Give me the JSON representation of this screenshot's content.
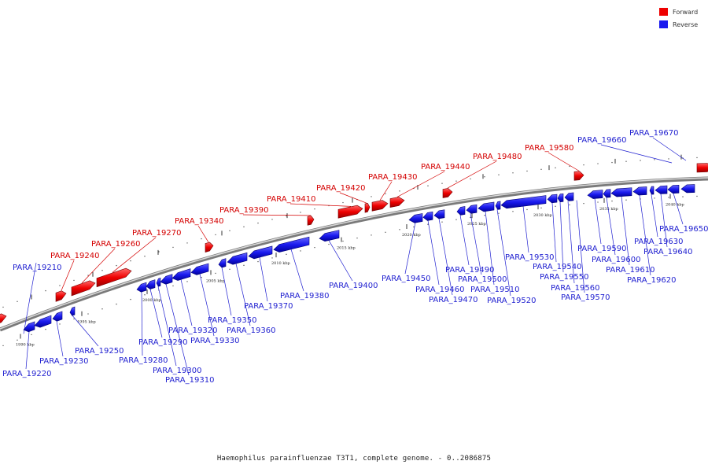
{
  "legend": [
    {
      "label": "Forward",
      "color": "#ee0000"
    },
    {
      "label": "Reverse",
      "color": "#1a1aee"
    }
  ],
  "caption": "Haemophilus parainfluenzae T3T1, complete genome. - 0..2086875",
  "scale": {
    "unit": "kbp",
    "ticks": [
      1990,
      1995,
      2000,
      2005,
      2010,
      2015,
      2020,
      2025,
      2030,
      2035,
      2040
    ]
  },
  "genes": {
    "forward": [
      {
        "id": "PARA_19240"
      },
      {
        "id": "PARA_19260"
      },
      {
        "id": "PARA_19270"
      },
      {
        "id": "PARA_19340"
      },
      {
        "id": "PARA_19390"
      },
      {
        "id": "PARA_19410"
      },
      {
        "id": "PARA_19420"
      },
      {
        "id": "PARA_19430"
      },
      {
        "id": "PARA_19440"
      },
      {
        "id": "PARA_19480"
      },
      {
        "id": "PARA_19580"
      }
    ],
    "reverse": [
      {
        "id": "PARA_19210"
      },
      {
        "id": "PARA_19220"
      },
      {
        "id": "PARA_19230"
      },
      {
        "id": "PARA_19250"
      },
      {
        "id": "PARA_19280"
      },
      {
        "id": "PARA_19290"
      },
      {
        "id": "PARA_19300"
      },
      {
        "id": "PARA_19310"
      },
      {
        "id": "PARA_19320"
      },
      {
        "id": "PARA_19330"
      },
      {
        "id": "PARA_19350"
      },
      {
        "id": "PARA_19360"
      },
      {
        "id": "PARA_19370"
      },
      {
        "id": "PARA_19380"
      },
      {
        "id": "PARA_19400"
      },
      {
        "id": "PARA_19450"
      },
      {
        "id": "PARA_19460"
      },
      {
        "id": "PARA_19470"
      },
      {
        "id": "PARA_19490"
      },
      {
        "id": "PARA_19500"
      },
      {
        "id": "PARA_19510"
      },
      {
        "id": "PARA_19520"
      },
      {
        "id": "PARA_19530"
      },
      {
        "id": "PARA_19540"
      },
      {
        "id": "PARA_19550"
      },
      {
        "id": "PARA_19560"
      },
      {
        "id": "PARA_19570"
      },
      {
        "id": "PARA_19590"
      },
      {
        "id": "PARA_19600"
      },
      {
        "id": "PARA_19610"
      },
      {
        "id": "PARA_19620"
      },
      {
        "id": "PARA_19630"
      },
      {
        "id": "PARA_19640"
      },
      {
        "id": "PARA_19650"
      },
      {
        "id": "PARA_19660"
      },
      {
        "id": "PARA_19670"
      }
    ]
  }
}
